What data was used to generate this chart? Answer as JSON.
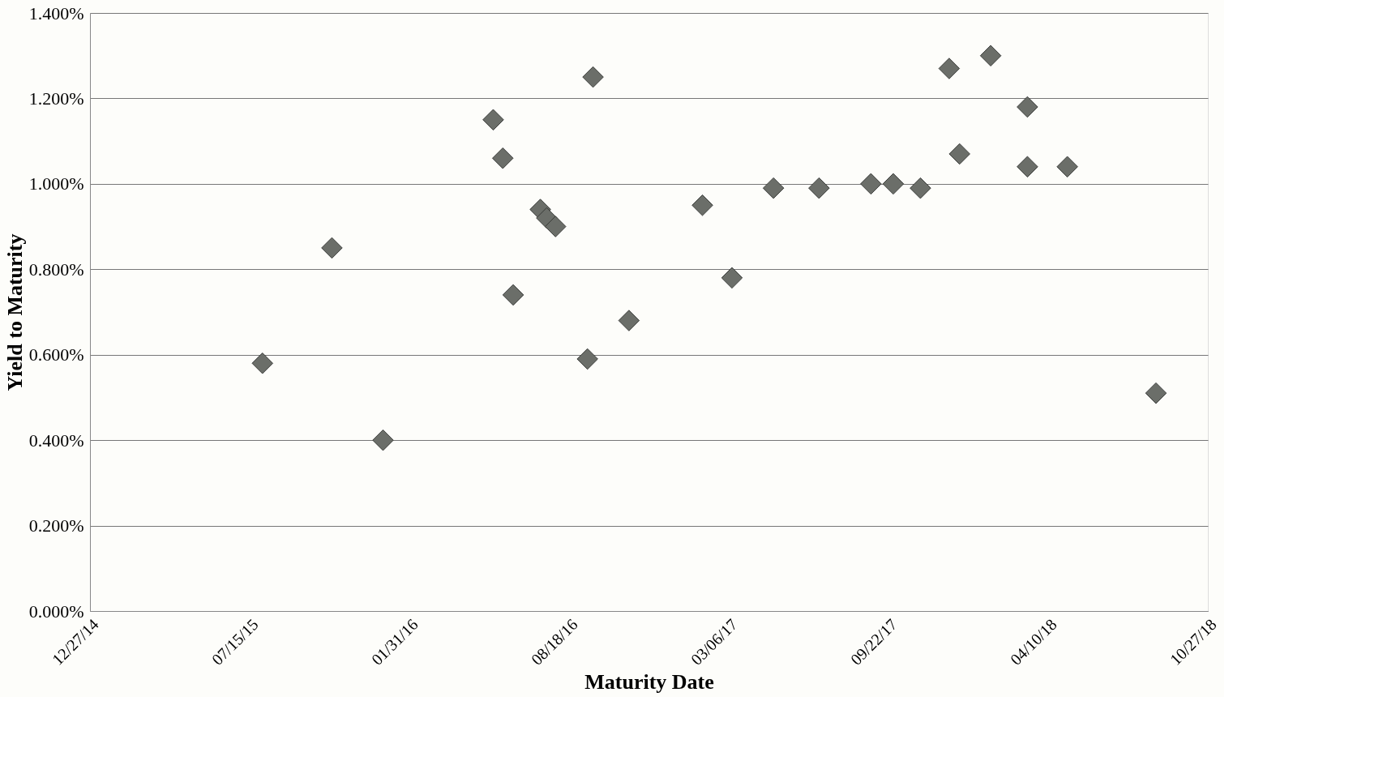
{
  "chart_data": {
    "type": "scatter",
    "xlabel": "Maturity Date",
    "ylabel": "Yield to Maturity",
    "x": [
      "2015-07-31",
      "2015-10-26",
      "2015-12-29",
      "2016-05-15",
      "2016-05-27",
      "2016-06-09",
      "2016-07-13",
      "2016-07-21",
      "2016-08-01",
      "2016-09-10",
      "2016-09-17",
      "2016-11-01",
      "2017-02-01",
      "2017-03-10",
      "2017-05-01",
      "2017-06-27",
      "2017-08-31",
      "2017-09-28",
      "2017-11-01",
      "2017-12-07",
      "2017-12-20",
      "2018-01-28",
      "2018-03-15",
      "2018-03-15",
      "2018-05-04",
      "2018-08-23"
    ],
    "series": [
      {
        "color": "#6b6e69",
        "values": [
          0.58,
          0.85,
          0.4,
          1.15,
          1.06,
          0.74,
          0.94,
          0.92,
          0.9,
          0.59,
          1.25,
          0.68,
          0.95,
          0.78,
          0.99,
          0.99,
          1.0,
          1.0,
          0.99,
          1.27,
          1.07,
          1.3,
          1.18,
          1.04,
          1.04,
          0.51
        ]
      }
    ],
    "xlim": [
      "2014-12-27",
      "2018-10-27"
    ],
    "xticks": [
      {
        "value": "2014-12-27",
        "label": "12/27/14"
      },
      {
        "value": "2015-07-15",
        "label": "07/15/15"
      },
      {
        "value": "2016-01-31",
        "label": "01/31/16"
      },
      {
        "value": "2016-08-18",
        "label": "08/18/16"
      },
      {
        "value": "2017-03-06",
        "label": "03/06/17"
      },
      {
        "value": "2017-09-22",
        "label": "09/22/17"
      },
      {
        "value": "2018-04-10",
        "label": "04/10/18"
      },
      {
        "value": "2018-10-27",
        "label": "10/27/18"
      }
    ],
    "ylim": [
      0,
      1.4
    ],
    "yticks": [
      {
        "value": 0,
        "label": "0.000%"
      },
      {
        "value": 0.2,
        "label": "0.200%"
      },
      {
        "value": 0.4,
        "label": "0.400%"
      },
      {
        "value": 0.6,
        "label": "0.600%"
      },
      {
        "value": 0.8,
        "label": "0.800%"
      },
      {
        "value": 1.0,
        "label": "1.000%"
      },
      {
        "value": 1.2,
        "label": "1.200%"
      },
      {
        "value": 1.4,
        "label": "1.400%"
      }
    ],
    "grid": "y",
    "legend": false,
    "marker": "diamond"
  }
}
